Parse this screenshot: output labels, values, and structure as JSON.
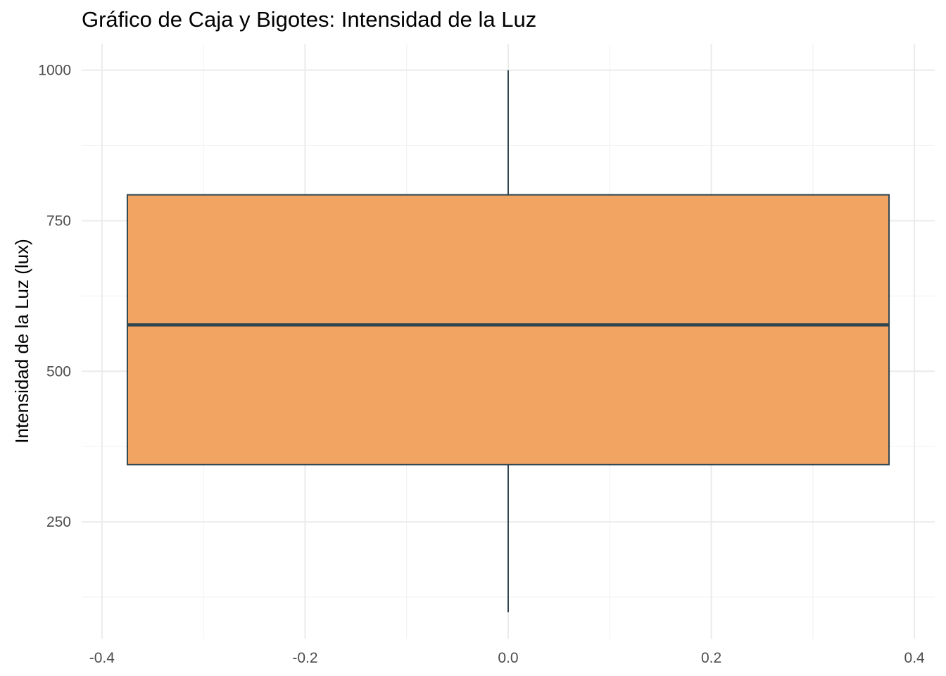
{
  "chart_data": {
    "type": "boxplot",
    "title": "Gráfico de Caja y Bigotes: Intensidad de la Luz",
    "xlabel": "",
    "ylabel": "Intensidad de la Luz (lux)",
    "xlim": [
      -0.4,
      0.4
    ],
    "ylim": [
      56,
      1044
    ],
    "x_ticks": [
      {
        "value": -0.4,
        "label": "-0.4"
      },
      {
        "value": -0.2,
        "label": "-0.2"
      },
      {
        "value": 0.0,
        "label": "0.0"
      },
      {
        "value": 0.2,
        "label": "0.2"
      },
      {
        "value": 0.4,
        "label": "0.4"
      }
    ],
    "y_ticks": [
      {
        "value": 250,
        "label": "250"
      },
      {
        "value": 500,
        "label": "500"
      },
      {
        "value": 750,
        "label": "750"
      },
      {
        "value": 1000,
        "label": "1000"
      }
    ],
    "x_minor_ticks": [
      -0.3,
      -0.1,
      0.1,
      0.3
    ],
    "y_minor_ticks": [
      125,
      375,
      625,
      875
    ],
    "grid": true,
    "box": {
      "x_center": 0.0,
      "x_left": -0.375,
      "x_right": 0.375,
      "whisker_low": 100,
      "q1": 345,
      "median": 577,
      "q3": 793,
      "whisker_high": 1000
    },
    "colors": {
      "box_fill": "#F2A463",
      "box_line": "#2F4550",
      "grid_major": "#EBEBEB",
      "grid_minor": "#F3F3F3",
      "tick_label": "#4D4D4D"
    }
  }
}
